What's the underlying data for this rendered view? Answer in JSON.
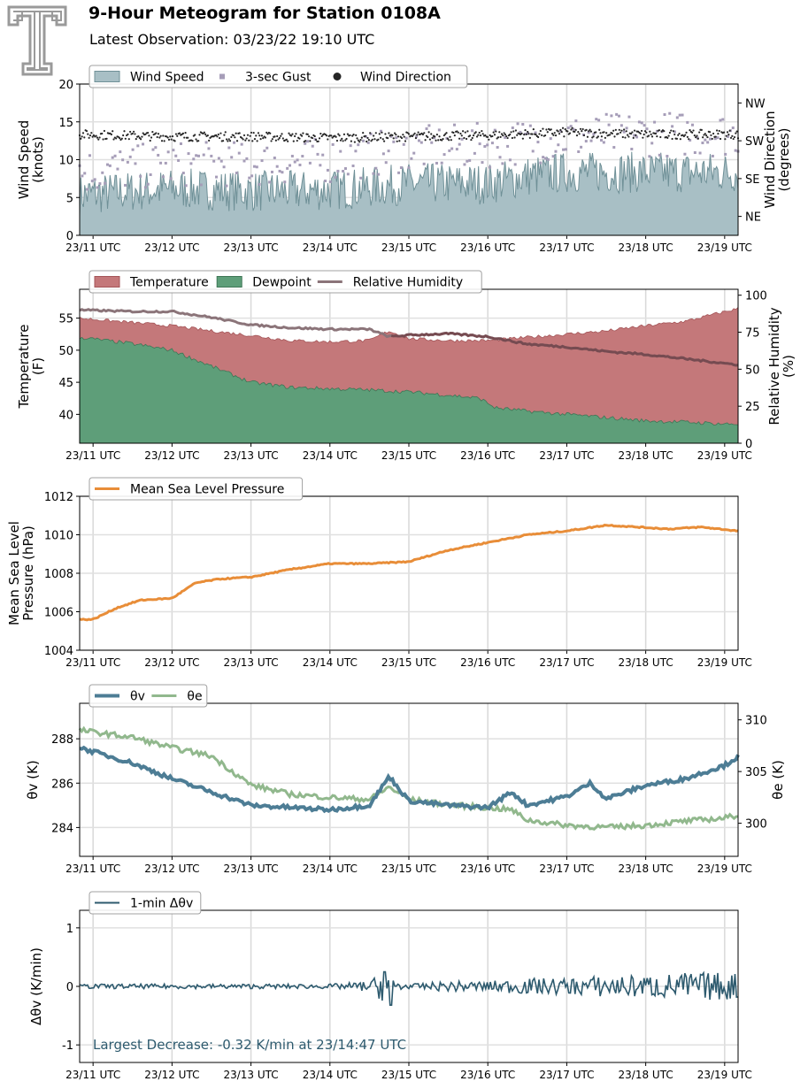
{
  "header": {
    "title": "9-Hour Meteogram for Station 0108A",
    "subtitle": "Latest Observation: 03/23/22 19:10 UTC"
  },
  "colors": {
    "wind_speed": "#a8bfc5",
    "wind_speed_line": "#6f9097",
    "gust": "#a69db8",
    "direction": "#262626",
    "temperature": "#c4787a",
    "dewpoint": "#5e9e79",
    "rh": "#8b7479",
    "rh_dark": "#6e3b40",
    "pressure": "#e88d38",
    "theta_v": "#4d7d95",
    "theta_e": "#91b88d",
    "delta": "#2d5a6e",
    "logo": "#9a9a9a"
  },
  "x_axis": {
    "tick_labels": [
      "23/11 UTC",
      "23/12 UTC",
      "23/13 UTC",
      "23/14 UTC",
      "23/15 UTC",
      "23/16 UTC",
      "23/17 UTC",
      "23/18 UTC",
      "23/19 UTC"
    ],
    "range_hours": [
      10.83,
      19.17
    ]
  },
  "chart_data": [
    {
      "type": "area",
      "id": "wind",
      "ylabel": "Wind Speed\n(knots)",
      "y2label": "Wind Direction\n(degrees)",
      "ylim": [
        0,
        20
      ],
      "yticks": [
        0,
        5,
        10,
        15,
        20
      ],
      "y2ticks": [
        {
          "label": "NE",
          "value": 45
        },
        {
          "label": "SE",
          "value": 135
        },
        {
          "label": "SW",
          "value": 225
        },
        {
          "label": "NW",
          "value": 315
        }
      ],
      "y2lim": [
        0,
        360
      ],
      "legend": [
        "Wind Speed",
        "3-sec Gust",
        "Wind Direction"
      ],
      "legend_position": "top-left",
      "series": [
        {
          "name": "Wind Speed",
          "x": [
            10.83,
            11.5,
            12.0,
            12.5,
            13.0,
            13.5,
            14.0,
            14.5,
            15.0,
            15.5,
            16.0,
            16.5,
            17.0,
            17.5,
            18.0,
            18.5,
            19.0,
            19.17
          ],
          "y": [
            4.5,
            5.0,
            5.3,
            5.2,
            5.0,
            5.0,
            5.2,
            5.5,
            6.0,
            6.0,
            6.0,
            7.0,
            7.5,
            7.5,
            7.5,
            7.5,
            7.5,
            7.5
          ]
        },
        {
          "name": "3-sec Gust",
          "x": [
            10.83,
            12.0,
            13.0,
            14.0,
            15.0,
            16.0,
            17.0,
            18.0,
            19.17
          ],
          "y": [
            7.5,
            8.5,
            8.5,
            9.0,
            10.5,
            11.0,
            12.0,
            12.5,
            12.5
          ]
        },
        {
          "name": "Wind Direction",
          "x": [
            10.83,
            12.0,
            13.0,
            14.0,
            15.0,
            16.0,
            17.0,
            18.0,
            19.17
          ],
          "y": [
            240,
            235,
            235,
            232,
            235,
            238,
            245,
            240,
            240
          ]
        }
      ]
    },
    {
      "type": "area",
      "id": "temp",
      "ylabel": "Temperature\n(F)",
      "y2label": "Relative Humidity\n(%)",
      "ylim": [
        35.5,
        59.5
      ],
      "yticks": [
        40,
        45,
        50,
        55
      ],
      "y2lim": [
        0,
        104
      ],
      "y2ticks": [
        0,
        25,
        50,
        75,
        100
      ],
      "legend": [
        "Temperature",
        "Dewpoint",
        "Relative Humidity"
      ],
      "legend_position": "top-left",
      "series": [
        {
          "name": "Temperature",
          "x": [
            10.83,
            11.5,
            12.0,
            12.5,
            13.0,
            13.5,
            14.0,
            14.5,
            14.75,
            15.0,
            15.5,
            16.0,
            16.5,
            17.0,
            17.5,
            18.0,
            18.5,
            19.0,
            19.17
          ],
          "y": [
            55.0,
            54.3,
            53.8,
            53.0,
            52.3,
            51.5,
            51.3,
            51.5,
            53.0,
            51.8,
            51.5,
            51.5,
            52.0,
            52.5,
            53.0,
            53.8,
            54.5,
            56.0,
            56.5
          ]
        },
        {
          "name": "Dewpoint",
          "x": [
            10.83,
            11.5,
            12.0,
            12.5,
            13.0,
            13.5,
            14.0,
            14.5,
            15.0,
            15.5,
            15.9,
            16.1,
            16.5,
            17.0,
            17.5,
            18.0,
            18.5,
            19.0,
            19.17
          ],
          "y": [
            52.0,
            51.0,
            50.0,
            47.5,
            45.0,
            44.2,
            44.0,
            43.8,
            43.5,
            43.0,
            42.5,
            41.0,
            40.5,
            40.0,
            39.5,
            39.0,
            38.8,
            38.5,
            38.5
          ]
        },
        {
          "name": "Relative Humidity",
          "x": [
            10.83,
            11.5,
            12.0,
            12.5,
            13.0,
            13.5,
            14.0,
            14.5,
            14.75,
            15.0,
            15.5,
            16.0,
            16.5,
            17.0,
            17.5,
            18.0,
            18.5,
            19.0,
            19.17
          ],
          "y": [
            90,
            89,
            89,
            85,
            80,
            78,
            77,
            77,
            72,
            73,
            74,
            72,
            67,
            65,
            62,
            60,
            57,
            54,
            53
          ]
        }
      ]
    },
    {
      "type": "line",
      "id": "pressure",
      "ylabel": "Mean Sea Level\nPressure (hPa)",
      "ylim": [
        1004,
        1012
      ],
      "yticks": [
        1004,
        1006,
        1008,
        1010,
        1012
      ],
      "legend": [
        "Mean Sea Level Pressure"
      ],
      "legend_position": "top-left",
      "series": [
        {
          "name": "Mean Sea Level Pressure",
          "x": [
            10.83,
            11.0,
            11.3,
            11.6,
            12.0,
            12.3,
            12.6,
            13.0,
            13.5,
            14.0,
            14.5,
            15.0,
            15.5,
            16.0,
            16.5,
            17.0,
            17.5,
            17.9,
            18.3,
            18.7,
            19.17
          ],
          "y": [
            1005.6,
            1005.6,
            1006.2,
            1006.6,
            1006.7,
            1007.5,
            1007.7,
            1007.8,
            1008.2,
            1008.5,
            1008.5,
            1008.6,
            1009.2,
            1009.6,
            1010.0,
            1010.2,
            1010.5,
            1010.4,
            1010.3,
            1010.4,
            1010.2
          ]
        }
      ]
    },
    {
      "type": "line",
      "id": "theta",
      "ylabel": "θv (K)",
      "y2label": "θe (K)",
      "ylim": [
        282.7,
        289.6
      ],
      "yticks": [
        284,
        286,
        288
      ],
      "y2lim": [
        296.8,
        311.6
      ],
      "y2ticks": [
        300,
        305,
        310
      ],
      "legend": [
        "θv",
        "θe"
      ],
      "legend_position": "top-left",
      "series": [
        {
          "name": "θv",
          "x": [
            10.83,
            11.5,
            12.0,
            12.5,
            13.0,
            13.5,
            14.0,
            14.5,
            14.75,
            15.0,
            15.5,
            16.0,
            16.3,
            16.5,
            17.0,
            17.3,
            17.5,
            18.0,
            18.5,
            19.0,
            19.17
          ],
          "y": [
            287.6,
            286.9,
            286.2,
            285.6,
            285.0,
            284.9,
            284.8,
            285.0,
            286.3,
            285.2,
            285.0,
            284.9,
            285.6,
            285.0,
            285.4,
            286.0,
            285.3,
            285.9,
            286.2,
            286.8,
            287.2
          ]
        },
        {
          "name": "θe",
          "x": [
            10.83,
            11.5,
            12.0,
            12.5,
            13.0,
            13.5,
            14.0,
            14.5,
            14.75,
            15.0,
            15.5,
            16.0,
            16.3,
            16.5,
            17.0,
            17.5,
            18.0,
            18.5,
            19.0,
            19.17
          ],
          "y": [
            309.0,
            308.3,
            307.3,
            306.5,
            303.7,
            302.8,
            302.5,
            302.3,
            303.5,
            302.3,
            301.8,
            301.5,
            301.3,
            300.3,
            299.8,
            299.6,
            299.8,
            300.2,
            300.5,
            300.8
          ]
        }
      ]
    },
    {
      "type": "line",
      "id": "delta",
      "ylabel": "Δθv (K/min)",
      "ylim": [
        -1.3,
        1.3
      ],
      "yticks": [
        -1,
        0,
        1
      ],
      "legend": [
        "1-min Δθv"
      ],
      "legend_position": "top-left",
      "annotation": "Largest Decrease: -0.32 K/min at 23/14:47 UTC",
      "series": [
        {
          "name": "1-min Δθv",
          "x": [
            10.83,
            11.5,
            12.0,
            12.5,
            13.0,
            13.5,
            14.0,
            14.5,
            14.7,
            14.78,
            14.85,
            15.0,
            15.5,
            16.0,
            16.5,
            17.0,
            17.5,
            18.0,
            18.5,
            19.0,
            19.17
          ],
          "y": [
            0.0,
            0.0,
            0.0,
            0.0,
            0.0,
            0.0,
            0.0,
            0.05,
            0.25,
            -0.32,
            0.1,
            0.0,
            0.05,
            0.05,
            0.1,
            0.1,
            0.15,
            0.15,
            0.2,
            0.2,
            -0.2
          ]
        }
      ]
    }
  ]
}
